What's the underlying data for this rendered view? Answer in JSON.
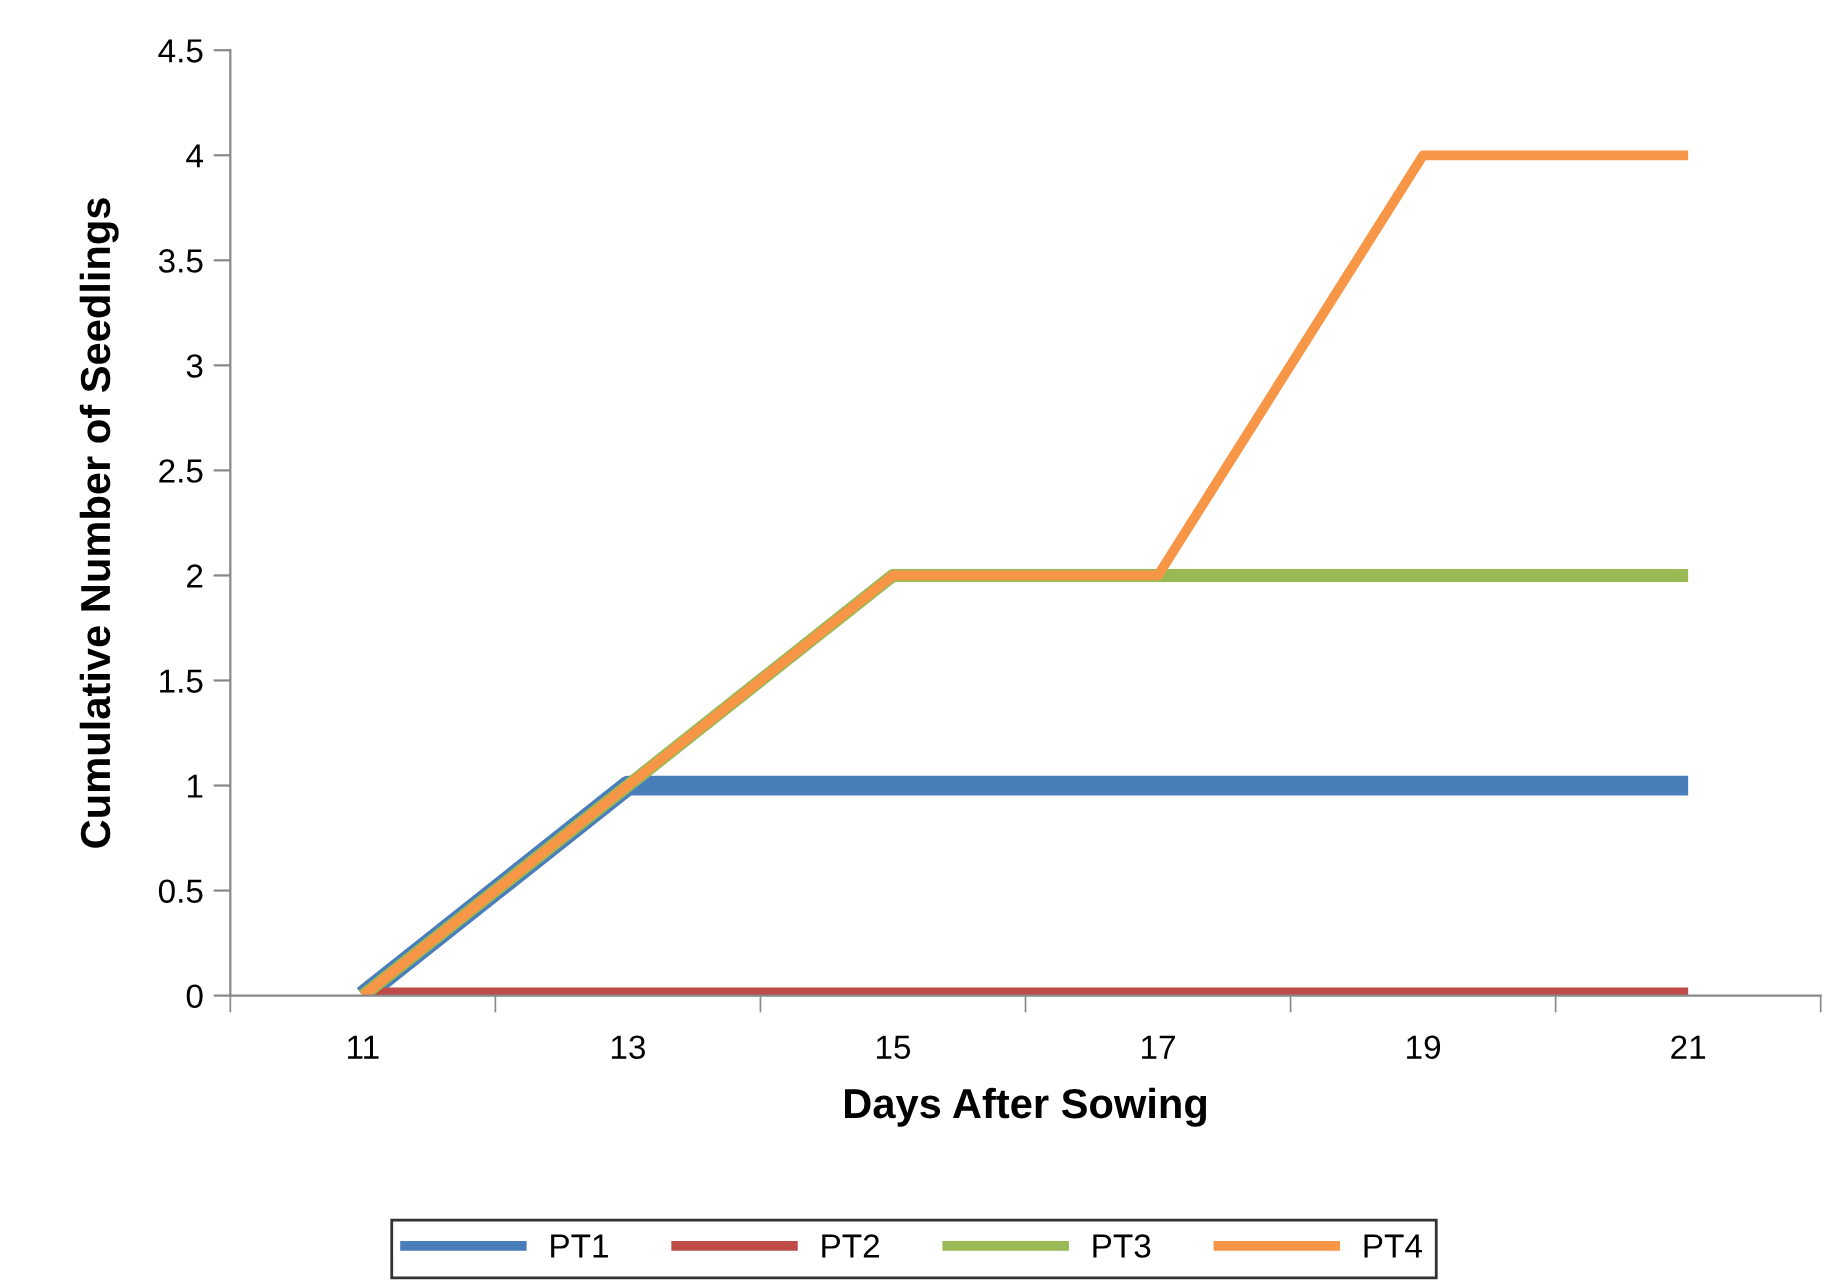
{
  "chart_data": {
    "type": "line",
    "xlabel": "Days After Sowing",
    "ylabel": "Cumulative Number of Seedlings",
    "categories": [
      "11",
      "13",
      "15",
      "17",
      "19",
      "21"
    ],
    "series": [
      {
        "name": "PT1",
        "color": "#4a7ebb",
        "values": [
          0,
          1,
          1,
          1,
          1,
          1
        ]
      },
      {
        "name": "PT2",
        "color": "#be4b48",
        "values": [
          0,
          0,
          0,
          0,
          0,
          0
        ]
      },
      {
        "name": "PT3",
        "color": "#98b954",
        "values": [
          0,
          1,
          2,
          2,
          2,
          2
        ]
      },
      {
        "name": "PT4",
        "color": "#f79646",
        "values": [
          0,
          1,
          2,
          2,
          4,
          4
        ]
      }
    ],
    "ylim": [
      0,
      4.5
    ],
    "yticks": [
      0,
      0.5,
      1,
      1.5,
      2,
      2.5,
      3,
      3.5,
      4,
      4.5
    ],
    "grid": false,
    "legend": "bottom",
    "marker": "none",
    "line_style": "solid"
  }
}
